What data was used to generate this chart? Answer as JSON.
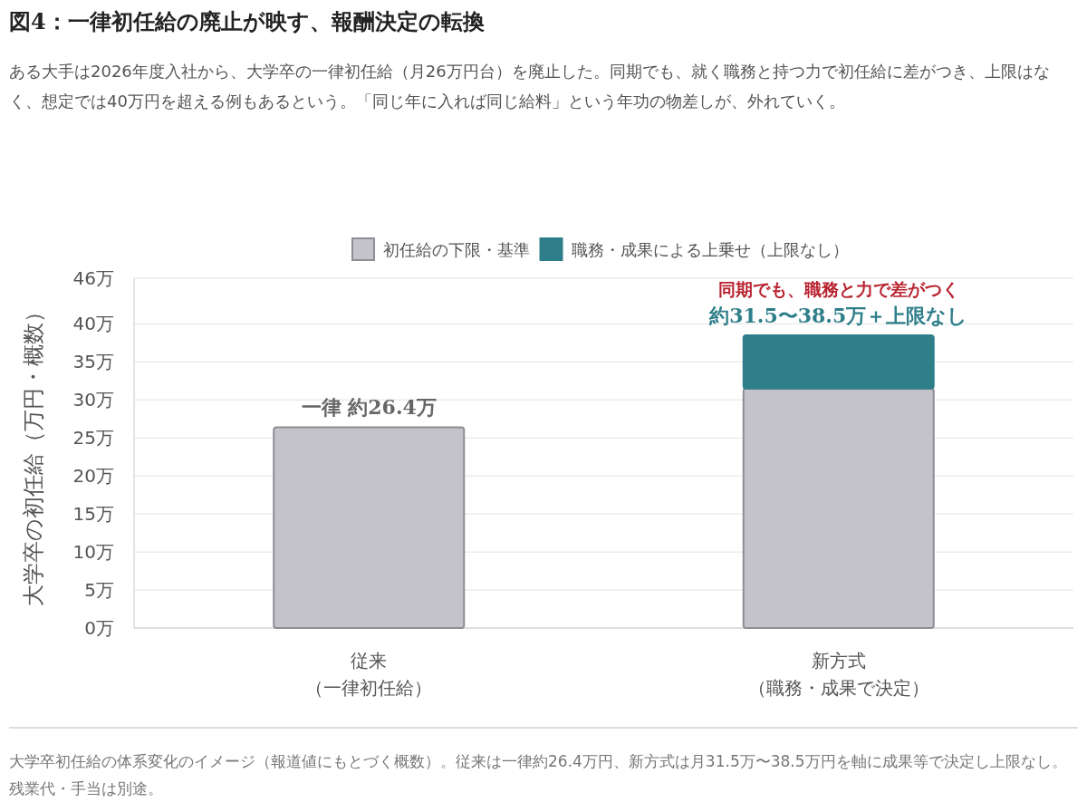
{
  "chart_data": {
    "type": "bar",
    "title": "図4：一律初任給の廃止が映す、報酬決定の転換",
    "subtitle": "ある大手は2026年度入社から、大学卒の一律初任給（月26万円台）を廃止した。同期でも、就く職務と持つ力で初任給に差がつき、上限はなく、想定では40万円を超える例もあるという。「同じ年に入れば同じ給料」という年功の物差しが、外れていく。",
    "ylabel": "大学卒の初任給（万円・概数）",
    "categories": [
      "従来（一律初任給）",
      "新方式（職務・成果で決定）"
    ],
    "stacked": true,
    "series": [
      {
        "name": "初任給の下限・基準",
        "color": "#c4c3c9",
        "values": [
          26.4,
          31.5
        ]
      },
      {
        "name": "職務・成果による上乗せ（上限なし）",
        "color": "#2e7f8a",
        "values": [
          null,
          7
        ]
      }
    ],
    "ylim": [
      0,
      46
    ],
    "yticks": [
      {
        "value": 0,
        "label": "0万"
      },
      {
        "value": 5,
        "label": "5万"
      },
      {
        "value": 10,
        "label": "10万"
      },
      {
        "value": 15,
        "label": "15万"
      },
      {
        "value": 20,
        "label": "20万"
      },
      {
        "value": 25,
        "label": "25万"
      },
      {
        "value": 30,
        "label": "30万"
      },
      {
        "value": 35,
        "label": "35万"
      },
      {
        "value": 40,
        "label": "40万"
      },
      {
        "value": 46,
        "label": "46万"
      }
    ],
    "grid": "y",
    "legend": "top",
    "annotations": [
      {
        "text": "一律 約26.4万",
        "x": "従来（一律初任給）",
        "y": 26.4
      },
      {
        "text": "同期でも、職務と力で差がつく",
        "x": "新方式（職務・成果で決定）",
        "y": 38.5
      },
      {
        "text": "約31.5〜38.5万＋上限なし",
        "x": "新方式（職務・成果で決定）",
        "y": 38.5
      },
      "大学卒初任給の体系変化のイメージ（報道値にもとづく概数）。従来は一律約26.4万円、新方式は月31.5万〜38.5万円を軸に成果等で決定し上限なし。残業代・手当は別途。"
    ]
  }
}
